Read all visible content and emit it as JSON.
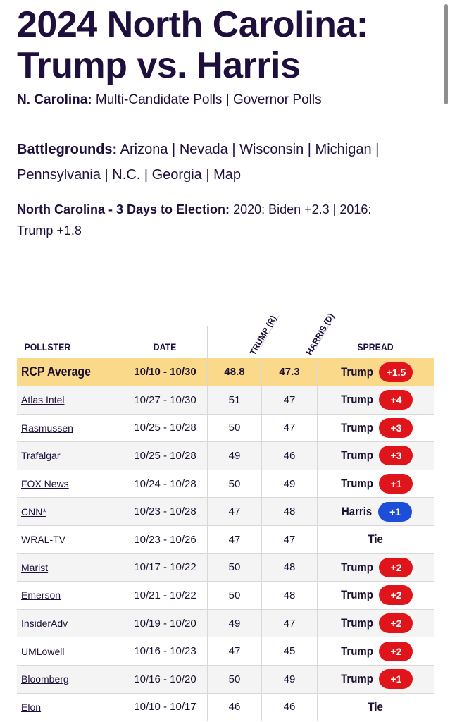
{
  "page": {
    "title_line1": "2024 North Carolina:",
    "title_line2": "Trump vs. Harris"
  },
  "subnav": {
    "label": "N. Carolina:",
    "links": [
      "Multi-Candidate Polls",
      "Governor Polls"
    ]
  },
  "battlegrounds": {
    "label": "Battlegrounds:",
    "links": [
      "Arizona",
      "Nevada",
      "Wisconsin",
      "Michigan",
      "Pennsylvania",
      "N.C.",
      "Georgia",
      "Map"
    ]
  },
  "election": {
    "label": "North Carolina - 3 Days to Election:",
    "text_a": "2020: Biden +2.3 | 2016:",
    "text_b": "Trump +1.8"
  },
  "table": {
    "headers": {
      "pollster": "POLLSTER",
      "date": "DATE",
      "trump": "TRUMP (R)",
      "harris": "HARRIS (D)",
      "spread": "SPREAD"
    },
    "average": {
      "pollster": "RCP Average",
      "date": "10/10 - 10/30",
      "trump": "48.8",
      "harris": "47.3",
      "leader": "Trump",
      "margin": "+1.5",
      "party": "r"
    },
    "rows": [
      {
        "pollster": "Atlas Intel",
        "date": "10/27 - 10/30",
        "trump": "51",
        "harris": "47",
        "leader": "Trump",
        "margin": "+4",
        "party": "r"
      },
      {
        "pollster": "Rasmussen",
        "date": "10/25 - 10/28",
        "trump": "50",
        "harris": "47",
        "leader": "Trump",
        "margin": "+3",
        "party": "r"
      },
      {
        "pollster": "Trafalgar",
        "date": "10/25 - 10/28",
        "trump": "49",
        "harris": "46",
        "leader": "Trump",
        "margin": "+3",
        "party": "r"
      },
      {
        "pollster": "FOX News",
        "date": "10/24 - 10/28",
        "trump": "50",
        "harris": "49",
        "leader": "Trump",
        "margin": "+1",
        "party": "r"
      },
      {
        "pollster": "CNN*",
        "date": "10/23 - 10/28",
        "trump": "47",
        "harris": "48",
        "leader": "Harris",
        "margin": "+1",
        "party": "d"
      },
      {
        "pollster": "WRAL-TV",
        "date": "10/23 - 10/26",
        "trump": "47",
        "harris": "47",
        "leader": "Tie",
        "margin": "",
        "party": ""
      },
      {
        "pollster": "Marist",
        "date": "10/17 - 10/22",
        "trump": "50",
        "harris": "48",
        "leader": "Trump",
        "margin": "+2",
        "party": "r"
      },
      {
        "pollster": "Emerson",
        "date": "10/21 - 10/22",
        "trump": "50",
        "harris": "48",
        "leader": "Trump",
        "margin": "+2",
        "party": "r"
      },
      {
        "pollster": "InsiderAdv",
        "date": "10/19 - 10/20",
        "trump": "49",
        "harris": "47",
        "leader": "Trump",
        "margin": "+2",
        "party": "r"
      },
      {
        "pollster": "UMLowell",
        "date": "10/16 - 10/23",
        "trump": "47",
        "harris": "45",
        "leader": "Trump",
        "margin": "+2",
        "party": "r"
      },
      {
        "pollster": "Bloomberg",
        "date": "10/16 - 10/20",
        "trump": "50",
        "harris": "49",
        "leader": "Trump",
        "margin": "+1",
        "party": "r"
      },
      {
        "pollster": "Elon",
        "date": "10/10 - 10/17",
        "trump": "46",
        "harris": "46",
        "leader": "Tie",
        "margin": "",
        "party": ""
      }
    ]
  },
  "colors": {
    "title": "#1f0f3d",
    "republican": "#e0151c",
    "democrat": "#1d4ed8",
    "average_row": "#fbd98a"
  }
}
